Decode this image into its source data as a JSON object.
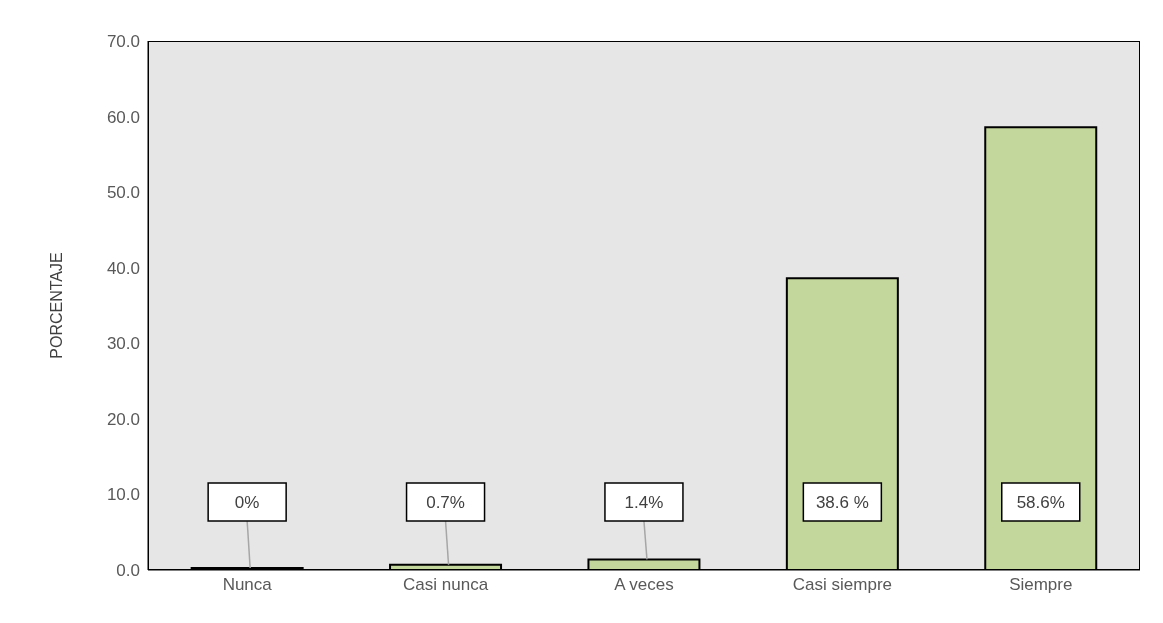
{
  "chart_data": {
    "type": "bar",
    "ylabel": "PORCENTAJE",
    "categories": [
      "Nunca",
      "Casi nunca",
      "A veces",
      "Casi siempre",
      "Siempre"
    ],
    "values": [
      0,
      0.7,
      1.4,
      38.6,
      58.6
    ],
    "value_labels": [
      "0%",
      "0.7%",
      "1.4%",
      "38.6 %",
      "58.6%"
    ],
    "color": "#c3d69b",
    "ylim": [
      0,
      70
    ],
    "yticks": [
      {
        "value": 0,
        "label": "0.0"
      },
      {
        "value": 10,
        "label": "10.0"
      },
      {
        "value": 20,
        "label": "20.0"
      },
      {
        "value": 30,
        "label": "30.0"
      },
      {
        "value": 40,
        "label": "40.0"
      },
      {
        "value": 50,
        "label": "50.0"
      },
      {
        "value": 60,
        "label": "60.0"
      },
      {
        "value": 70,
        "label": "70.0"
      }
    ],
    "grid": false
  }
}
